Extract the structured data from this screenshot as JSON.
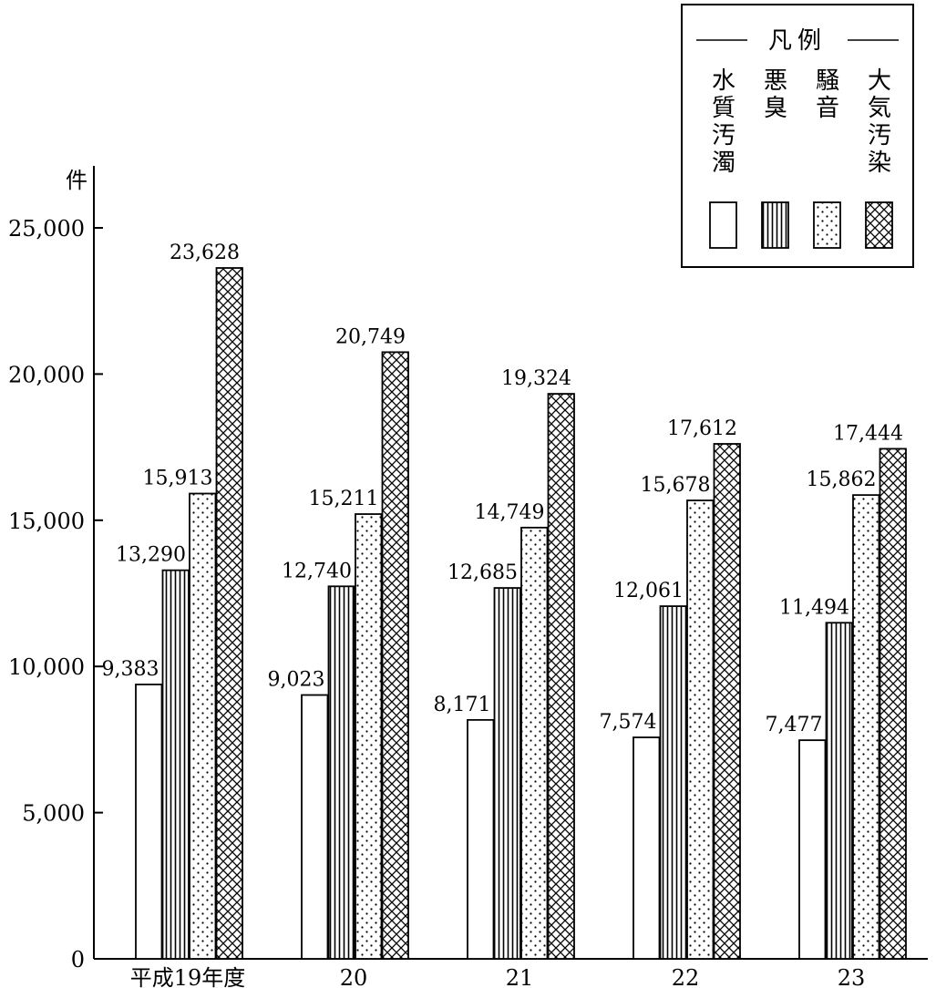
{
  "chart_data": {
    "type": "bar",
    "title": "",
    "xlabel": "",
    "ylabel": "件",
    "ylim": [
      0,
      25000
    ],
    "yticks": [
      0,
      5000,
      10000,
      15000,
      20000,
      25000
    ],
    "ytick_labels": [
      "0",
      "5,000",
      "10,000",
      "15,000",
      "20,000",
      "25,000"
    ],
    "categories": [
      "平成19年度",
      "20",
      "21",
      "22",
      "23"
    ],
    "series": [
      {
        "name": "水質汚濁",
        "pattern": "blank",
        "values": [
          9383,
          9023,
          8171,
          7574,
          7477
        ],
        "labels": [
          "9,383",
          "9,023",
          "8,171",
          "7,574",
          "7,477"
        ]
      },
      {
        "name": "悪臭",
        "pattern": "vertical-lines",
        "values": [
          13290,
          12740,
          12685,
          12061,
          11494
        ],
        "labels": [
          "13,290",
          "12,740",
          "12,685",
          "12,061",
          "11,494"
        ]
      },
      {
        "name": "騒音",
        "pattern": "dots",
        "values": [
          15913,
          15211,
          14749,
          15678,
          15862
        ],
        "labels": [
          "15,913",
          "15,211",
          "14,749",
          "15,678",
          "15,862"
        ]
      },
      {
        "name": "大気汚染",
        "pattern": "crosshatch",
        "values": [
          23628,
          20749,
          19324,
          17612,
          17444
        ],
        "labels": [
          "23,628",
          "20,749",
          "19,324",
          "17,612",
          "17,444"
        ]
      }
    ],
    "legend": {
      "title": "凡例",
      "position": "top-right"
    },
    "grid": false,
    "colors": {
      "ink": "#000000",
      "paper": "#ffffff"
    }
  }
}
